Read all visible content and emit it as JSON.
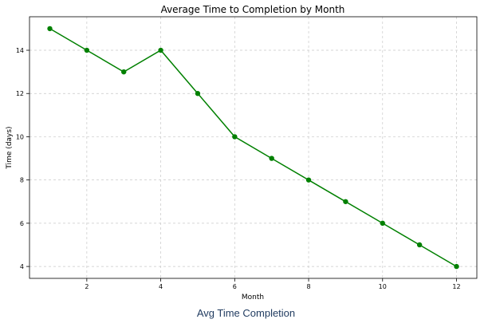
{
  "chart_data": {
    "type": "line",
    "title": "Average Time to Completion by Month",
    "xlabel": "Month",
    "ylabel": "Time (days)",
    "x": [
      1,
      2,
      3,
      4,
      5,
      6,
      7,
      8,
      9,
      10,
      11,
      12
    ],
    "series": [
      {
        "values": [
          15,
          14,
          13,
          14,
          12,
          10,
          9,
          8,
          7,
          6,
          5,
          4
        ],
        "color": "#008000"
      }
    ],
    "xlim": [
      0.45,
      12.55
    ],
    "ylim": [
      3.45,
      15.55
    ],
    "xticks": [
      2,
      4,
      6,
      8,
      10,
      12
    ],
    "yticks": [
      4,
      6,
      8,
      10,
      12,
      14
    ],
    "grid": true,
    "grid_style": "dashed"
  },
  "caption": "Avg Time Completion"
}
